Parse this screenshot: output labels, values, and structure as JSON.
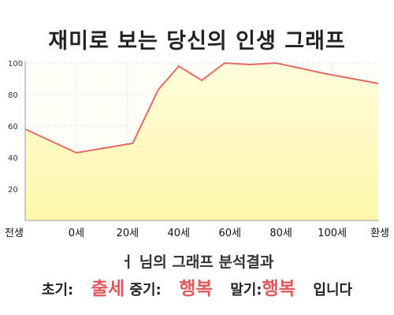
{
  "title": "재미로 보는 당신의 인생 그래프",
  "chart_data": {
    "type": "area",
    "x_tick_labels": [
      "전생",
      "0세",
      "20세",
      "40세",
      "60세",
      "80세",
      "100세",
      "환생"
    ],
    "y_tick_labels": [
      "20",
      "40",
      "60",
      "80",
      "100"
    ],
    "ylim": [
      0,
      100
    ],
    "x": [
      -20,
      0,
      22,
      32,
      40,
      49,
      58,
      68,
      78,
      98,
      118
    ],
    "y": [
      58,
      43,
      49,
      83,
      98,
      89,
      100,
      99,
      100,
      93,
      87
    ],
    "colors": {
      "line": "#e06a6a",
      "fill_top": "#fffcdb",
      "fill_bottom": "#fff7a9"
    },
    "grid": true
  },
  "result": {
    "heading": "ㅓ 님의 그래프 분석결과",
    "early_label": "초기:",
    "early_value": "출세",
    "mid_label": "중기:",
    "mid_value": "행복",
    "late_label": "말기:",
    "late_value": "행복",
    "suffix": "입니다"
  }
}
